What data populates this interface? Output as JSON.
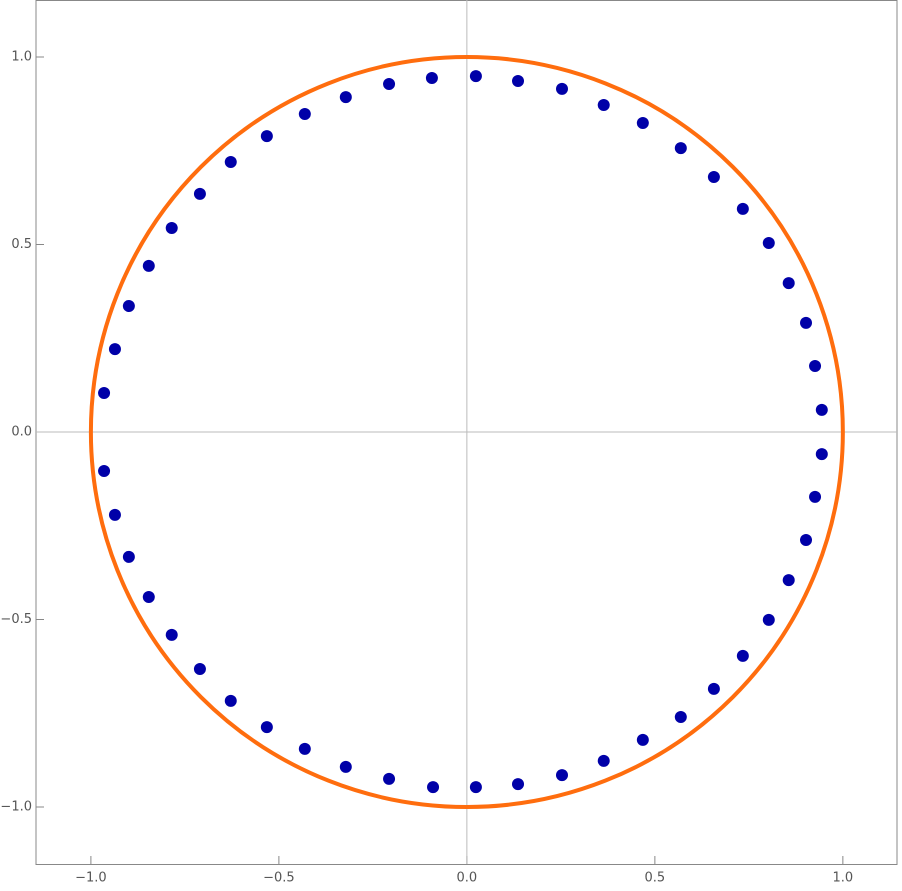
{
  "chart_data": {
    "type": "scatter",
    "x": [
      0.024,
      0.136,
      0.253,
      0.364,
      0.468,
      0.569,
      0.657,
      0.734,
      0.803,
      0.856,
      0.902,
      0.926,
      0.944,
      0.944,
      0.926,
      0.902,
      0.856,
      0.803,
      0.734,
      0.657,
      0.569,
      0.468,
      0.364,
      0.253,
      0.136,
      0.024,
      -0.09,
      -0.207,
      -0.322,
      -0.431,
      -0.532,
      -0.628,
      -0.71,
      -0.785,
      -0.846,
      -0.899,
      -0.936,
      -0.965,
      -0.965,
      -0.936,
      -0.899,
      -0.846,
      -0.785,
      -0.71,
      -0.628,
      -0.532,
      -0.431,
      -0.322,
      -0.207,
      -0.093
    ],
    "values": [
      0.949,
      0.936,
      0.915,
      0.872,
      0.824,
      0.757,
      0.68,
      0.595,
      0.504,
      0.397,
      0.291,
      0.176,
      0.059,
      -0.059,
      -0.173,
      -0.288,
      -0.395,
      -0.501,
      -0.597,
      -0.685,
      -0.76,
      -0.821,
      -0.877,
      -0.915,
      -0.939,
      -0.947,
      -0.947,
      -0.925,
      -0.893,
      -0.845,
      -0.787,
      -0.717,
      -0.632,
      -0.541,
      -0.44,
      -0.333,
      -0.221,
      -0.104,
      0.104,
      0.221,
      0.336,
      0.443,
      0.544,
      0.635,
      0.72,
      0.789,
      0.848,
      0.893,
      0.928,
      0.944
    ],
    "color": "#0000a8",
    "circle": {
      "center": [
        0,
        0
      ],
      "radius": 1,
      "color": "#ff6d0e"
    },
    "xlim": [
      -1.146,
      1.144
    ],
    "ylim": [
      -1.152,
      1.152
    ],
    "xticks": [
      {
        "value": -1,
        "label": "−1.0"
      },
      {
        "value": -0.5,
        "label": "−0.5"
      },
      {
        "value": 0,
        "label": "0.0"
      },
      {
        "value": 0.5,
        "label": "0.5"
      },
      {
        "value": 1,
        "label": "1.0"
      }
    ],
    "yticks": [
      {
        "value": -1,
        "label": "−1.0"
      },
      {
        "value": -0.5,
        "label": "−0.5"
      },
      {
        "value": 0,
        "label": "0.0"
      },
      {
        "value": 0.5,
        "label": "0.5"
      },
      {
        "value": 1,
        "label": "1.0"
      }
    ]
  }
}
